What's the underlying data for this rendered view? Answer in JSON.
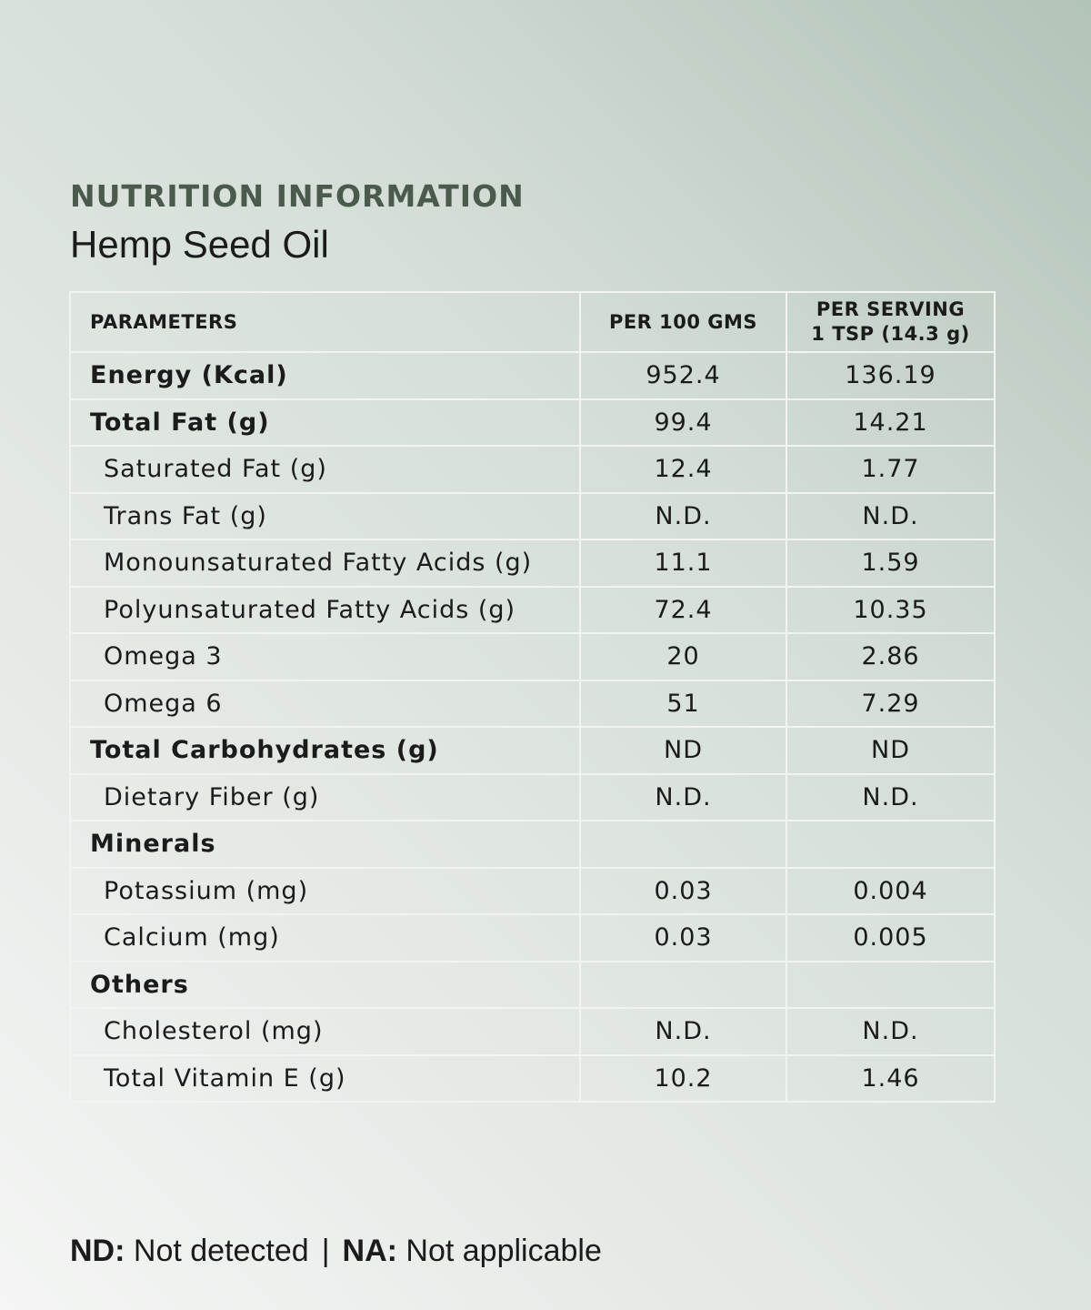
{
  "header": {
    "title": "NUTRITION INFORMATION",
    "product": "Hemp Seed Oil"
  },
  "table": {
    "columns": {
      "parameters": "PARAMETERS",
      "per100": "PER 100 GMS",
      "serving_line1": "PER SERVING",
      "serving_line2": "1 TSP (14.3 g)"
    },
    "rows": [
      {
        "label": "Energy (Kcal)",
        "per100": "952.4",
        "serving": "136.19",
        "bold": true
      },
      {
        "label": "Total Fat (g)",
        "per100": "99.4",
        "serving": "14.21",
        "bold": true
      },
      {
        "label": "Saturated Fat (g)",
        "per100": "12.4",
        "serving": "1.77",
        "bold": false
      },
      {
        "label": "Trans Fat (g)",
        "per100": "N.D.",
        "serving": "N.D.",
        "bold": false
      },
      {
        "label": "Monounsaturated Fatty Acids (g)",
        "per100": "11.1",
        "serving": "1.59",
        "bold": false
      },
      {
        "label": "Polyunsaturated Fatty Acids (g)",
        "per100": "72.4",
        "serving": "10.35",
        "bold": false
      },
      {
        "label": "Omega 3",
        "per100": "20",
        "serving": "2.86",
        "bold": false
      },
      {
        "label": "Omega 6",
        "per100": "51",
        "serving": "7.29",
        "bold": false
      },
      {
        "label": "Total Carbohydrates (g)",
        "per100": "ND",
        "serving": "ND",
        "bold": true
      },
      {
        "label": "Dietary Fiber (g)",
        "per100": "N.D.",
        "serving": "N.D.",
        "bold": false
      },
      {
        "label": "Minerals",
        "per100": "",
        "serving": "",
        "bold": true
      },
      {
        "label": "Potassium (mg)",
        "per100": "0.03",
        "serving": "0.004",
        "bold": false
      },
      {
        "label": "Calcium (mg)",
        "per100": "0.03",
        "serving": "0.005",
        "bold": false
      },
      {
        "label": "Others",
        "per100": "",
        "serving": "",
        "bold": true
      },
      {
        "label": "Cholesterol (mg)",
        "per100": "N.D.",
        "serving": "N.D.",
        "bold": false
      },
      {
        "label": "Total Vitamin E (g)",
        "per100": "10.2",
        "serving": "1.46",
        "bold": false
      }
    ]
  },
  "footnote": {
    "nd_key": "ND:",
    "nd_text": "Not detected",
    "separator": "|",
    "na_key": "NA:",
    "na_text": "Not applicable"
  }
}
